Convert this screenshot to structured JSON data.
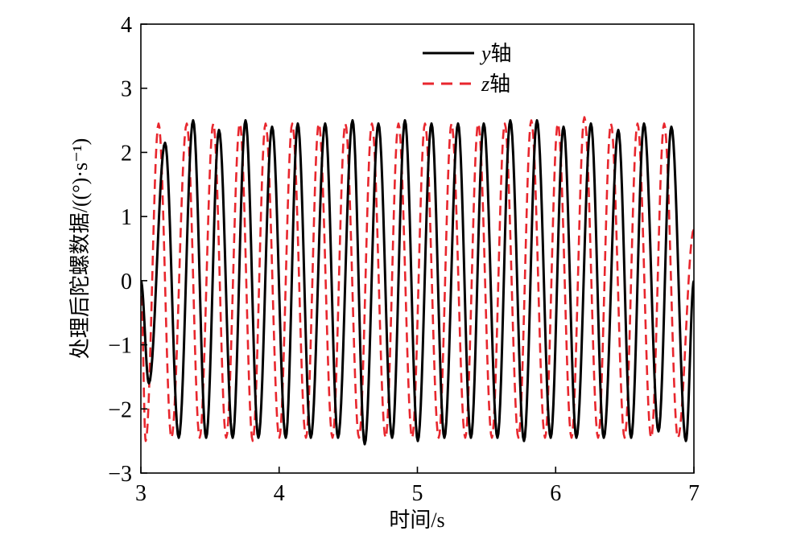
{
  "chart_data": {
    "type": "line",
    "xlabel": "时间/s",
    "ylabel": "处理后陀螺数据/((°)·s⁻¹)",
    "xlim": [
      3,
      7
    ],
    "ylim": [
      -3,
      4
    ],
    "xticks": [
      3,
      4,
      5,
      6,
      7
    ],
    "xticklabels": [
      "3",
      "4",
      "5",
      "6",
      "7"
    ],
    "yticks": [
      -3,
      -2,
      -1,
      0,
      1,
      2,
      3,
      4
    ],
    "yticklabels": [
      "−3",
      "−2",
      "−1",
      "0",
      "1",
      "2",
      "3",
      "4"
    ],
    "grid": false,
    "legend": "top-center",
    "series": [
      {
        "name": "y轴",
        "color": "#000000",
        "line_style": "solid",
        "x": [
          3.0,
          3.058,
          3.175,
          3.274,
          3.378,
          3.472,
          3.565,
          3.664,
          3.757,
          3.85,
          3.949,
          4.048,
          4.135,
          4.229,
          4.333,
          4.426,
          4.531,
          4.619,
          4.718,
          4.817,
          4.91,
          5.003,
          5.102,
          5.195,
          5.294,
          5.387,
          5.48,
          5.579,
          5.672,
          5.771,
          5.865,
          5.964,
          6.057,
          6.15,
          6.255,
          6.348,
          6.453,
          6.546,
          6.639,
          6.744,
          6.837,
          6.942,
          7.0
        ],
        "y": [
          0.0,
          -1.6,
          2.15,
          -2.45,
          2.5,
          -2.45,
          2.35,
          -2.45,
          2.5,
          -2.45,
          2.4,
          -2.45,
          2.45,
          -2.45,
          2.45,
          -2.45,
          2.5,
          -2.55,
          2.45,
          -2.45,
          2.5,
          -2.5,
          2.45,
          -2.45,
          2.45,
          -2.45,
          2.45,
          -2.45,
          2.5,
          -2.5,
          2.5,
          -2.45,
          2.4,
          -2.45,
          2.45,
          -2.45,
          2.35,
          -2.45,
          2.45,
          -2.35,
          2.4,
          -2.5,
          0.0
        ]
      },
      {
        "name": "z轴",
        "color": "#e8262d",
        "line_style": "dashed",
        "x": [
          3.0,
          3.035,
          3.128,
          3.221,
          3.332,
          3.425,
          3.524,
          3.617,
          3.716,
          3.809,
          3.902,
          4.001,
          4.095,
          4.194,
          4.287,
          4.386,
          4.479,
          4.578,
          4.671,
          4.77,
          4.863,
          4.962,
          5.055,
          5.154,
          5.247,
          5.346,
          5.44,
          5.539,
          5.632,
          5.731,
          5.824,
          5.923,
          6.016,
          6.115,
          6.208,
          6.307,
          6.4,
          6.499,
          6.592,
          6.691,
          6.785,
          6.884,
          7.0
        ],
        "y": [
          0.0,
          -2.5,
          2.45,
          -2.45,
          2.45,
          -2.45,
          2.45,
          -2.45,
          2.45,
          -2.5,
          2.45,
          -2.45,
          2.45,
          -2.45,
          2.45,
          -2.45,
          2.45,
          -2.45,
          2.45,
          -2.45,
          2.45,
          -2.45,
          2.45,
          -2.45,
          2.45,
          -2.45,
          2.45,
          -2.45,
          2.45,
          -2.45,
          2.5,
          -2.45,
          2.45,
          -2.45,
          2.55,
          -2.45,
          2.45,
          -2.45,
          2.45,
          -2.45,
          2.45,
          -2.45,
          0.8
        ]
      }
    ]
  }
}
